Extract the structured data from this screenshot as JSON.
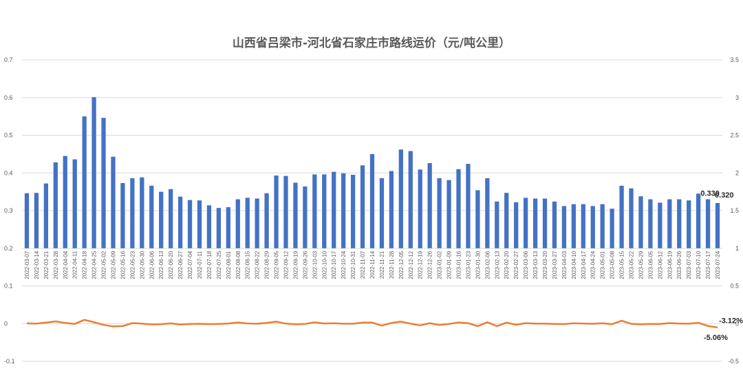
{
  "chart_data": {
    "type": "bar",
    "title": "山西省吕梁市-河北省石家庄市路线运价（元/吨公里）",
    "categories": [
      "2022-03-07",
      "2022-03-14",
      "2022-03-21",
      "2022-03-28",
      "2022-04-04",
      "2022-04-11",
      "2022-04-18",
      "2022-04-25",
      "2022-05-02",
      "2022-05-09",
      "2022-05-16",
      "2022-05-23",
      "2022-05-30",
      "2022-06-06",
      "2022-06-13",
      "2022-06-20",
      "2022-06-27",
      "2022-07-04",
      "2022-07-11",
      "2022-07-18",
      "2022-07-25",
      "2022-08-01",
      "2022-08-08",
      "2022-08-15",
      "2022-08-22",
      "2022-08-29",
      "2022-09-05",
      "2022-09-12",
      "2022-09-19",
      "2022-09-26",
      "2022-10-03",
      "2022-10-10",
      "2022-10-17",
      "2022-10-24",
      "2022-10-31",
      "2022-11-07",
      "2022-11-14",
      "2022-11-21",
      "2022-11-28",
      "2022-12-05",
      "2022-12-12",
      "2022-12-19",
      "2022-12-26",
      "2023-01-02",
      "2023-01-09",
      "2023-01-16",
      "2023-01-23",
      "2023-01-30",
      "2023-02-06",
      "2023-02-13",
      "2023-02-20",
      "2023-02-27",
      "2023-03-06",
      "2023-03-13",
      "2023-03-20",
      "2023-03-27",
      "2023-04-03",
      "2023-04-10",
      "2023-04-17",
      "2023-04-24",
      "2023-05-01",
      "2023-05-08",
      "2023-05-15",
      "2023-05-22",
      "2023-05-29",
      "2023-06-05",
      "2023-06-12",
      "2023-06-19",
      "2023-06-26",
      "2023-07-03",
      "2023-07-10",
      "2023-07-17",
      "2023-07-24"
    ],
    "y_left": {
      "ticks": [
        "-0.1",
        "0",
        "0.1",
        "0.2",
        "0.3",
        "0.4",
        "0.5",
        "0.6",
        "0.7"
      ],
      "range": [
        -0.1,
        0.7
      ]
    },
    "y_right": {
      "ticks": [
        "-0.5",
        "0",
        "0.5",
        "1",
        "1.5",
        "2",
        "2.5",
        "3",
        "3.5"
      ],
      "range": [
        -0.5,
        3.5
      ]
    },
    "series": [
      {
        "type": "bar",
        "axis": "left",
        "baseline": 0.2,
        "values": [
          0.346,
          0.347,
          0.372,
          0.428,
          0.445,
          0.436,
          0.55,
          0.601,
          0.546,
          0.443,
          0.373,
          0.386,
          0.388,
          0.366,
          0.35,
          0.357,
          0.337,
          0.328,
          0.327,
          0.314,
          0.307,
          0.309,
          0.33,
          0.334,
          0.332,
          0.346,
          0.393,
          0.392,
          0.374,
          0.364,
          0.396,
          0.396,
          0.403,
          0.399,
          0.395,
          0.42,
          0.45,
          0.386,
          0.405,
          0.462,
          0.458,
          0.409,
          0.426,
          0.386,
          0.381,
          0.41,
          0.424,
          0.354,
          0.386,
          0.324,
          0.347,
          0.322,
          0.334,
          0.332,
          0.332,
          0.324,
          0.312,
          0.317,
          0.317,
          0.312,
          0.317,
          0.305,
          0.366,
          0.359,
          0.338,
          0.33,
          0.321,
          0.33,
          0.33,
          0.327,
          0.345,
          0.33,
          0.32
        ]
      },
      {
        "type": "line",
        "axis": "right",
        "values": [
          0.003,
          0,
          0.014,
          0.03,
          0.009,
          -0.004,
          0.05,
          0.02,
          -0.018,
          -0.037,
          -0.033,
          0.007,
          0,
          -0.011,
          -0.008,
          0.003,
          -0.012,
          -0.005,
          -0.002,
          -0.007,
          -0.004,
          0.001,
          0.015,
          0.002,
          -0.001,
          0.01,
          0.026,
          0,
          -0.009,
          -0.004,
          0.017,
          0.001,
          0.004,
          -0.001,
          -0.001,
          0.013,
          0.013,
          -0.027,
          0.009,
          0.026,
          0,
          -0.023,
          0.006,
          -0.018,
          -0.004,
          0.015,
          0.006,
          -0.034,
          0.018,
          -0.033,
          0.013,
          -0.015,
          0.006,
          0,
          0,
          -0.004,
          -0.006,
          0.004,
          0.001,
          -0.002,
          0.004,
          -0.007,
          0.038,
          -0.003,
          -0.01,
          -0.004,
          -0.005,
          0.007,
          0.001,
          -0.001,
          0.011,
          -0.0312,
          -0.0506
        ]
      }
    ],
    "annotations": {
      "bar_last_2": [
        "0.330",
        "0.320"
      ],
      "line_last_2": [
        "-3.12%",
        "-5.06%"
      ]
    },
    "grid": true,
    "legend": "none"
  }
}
